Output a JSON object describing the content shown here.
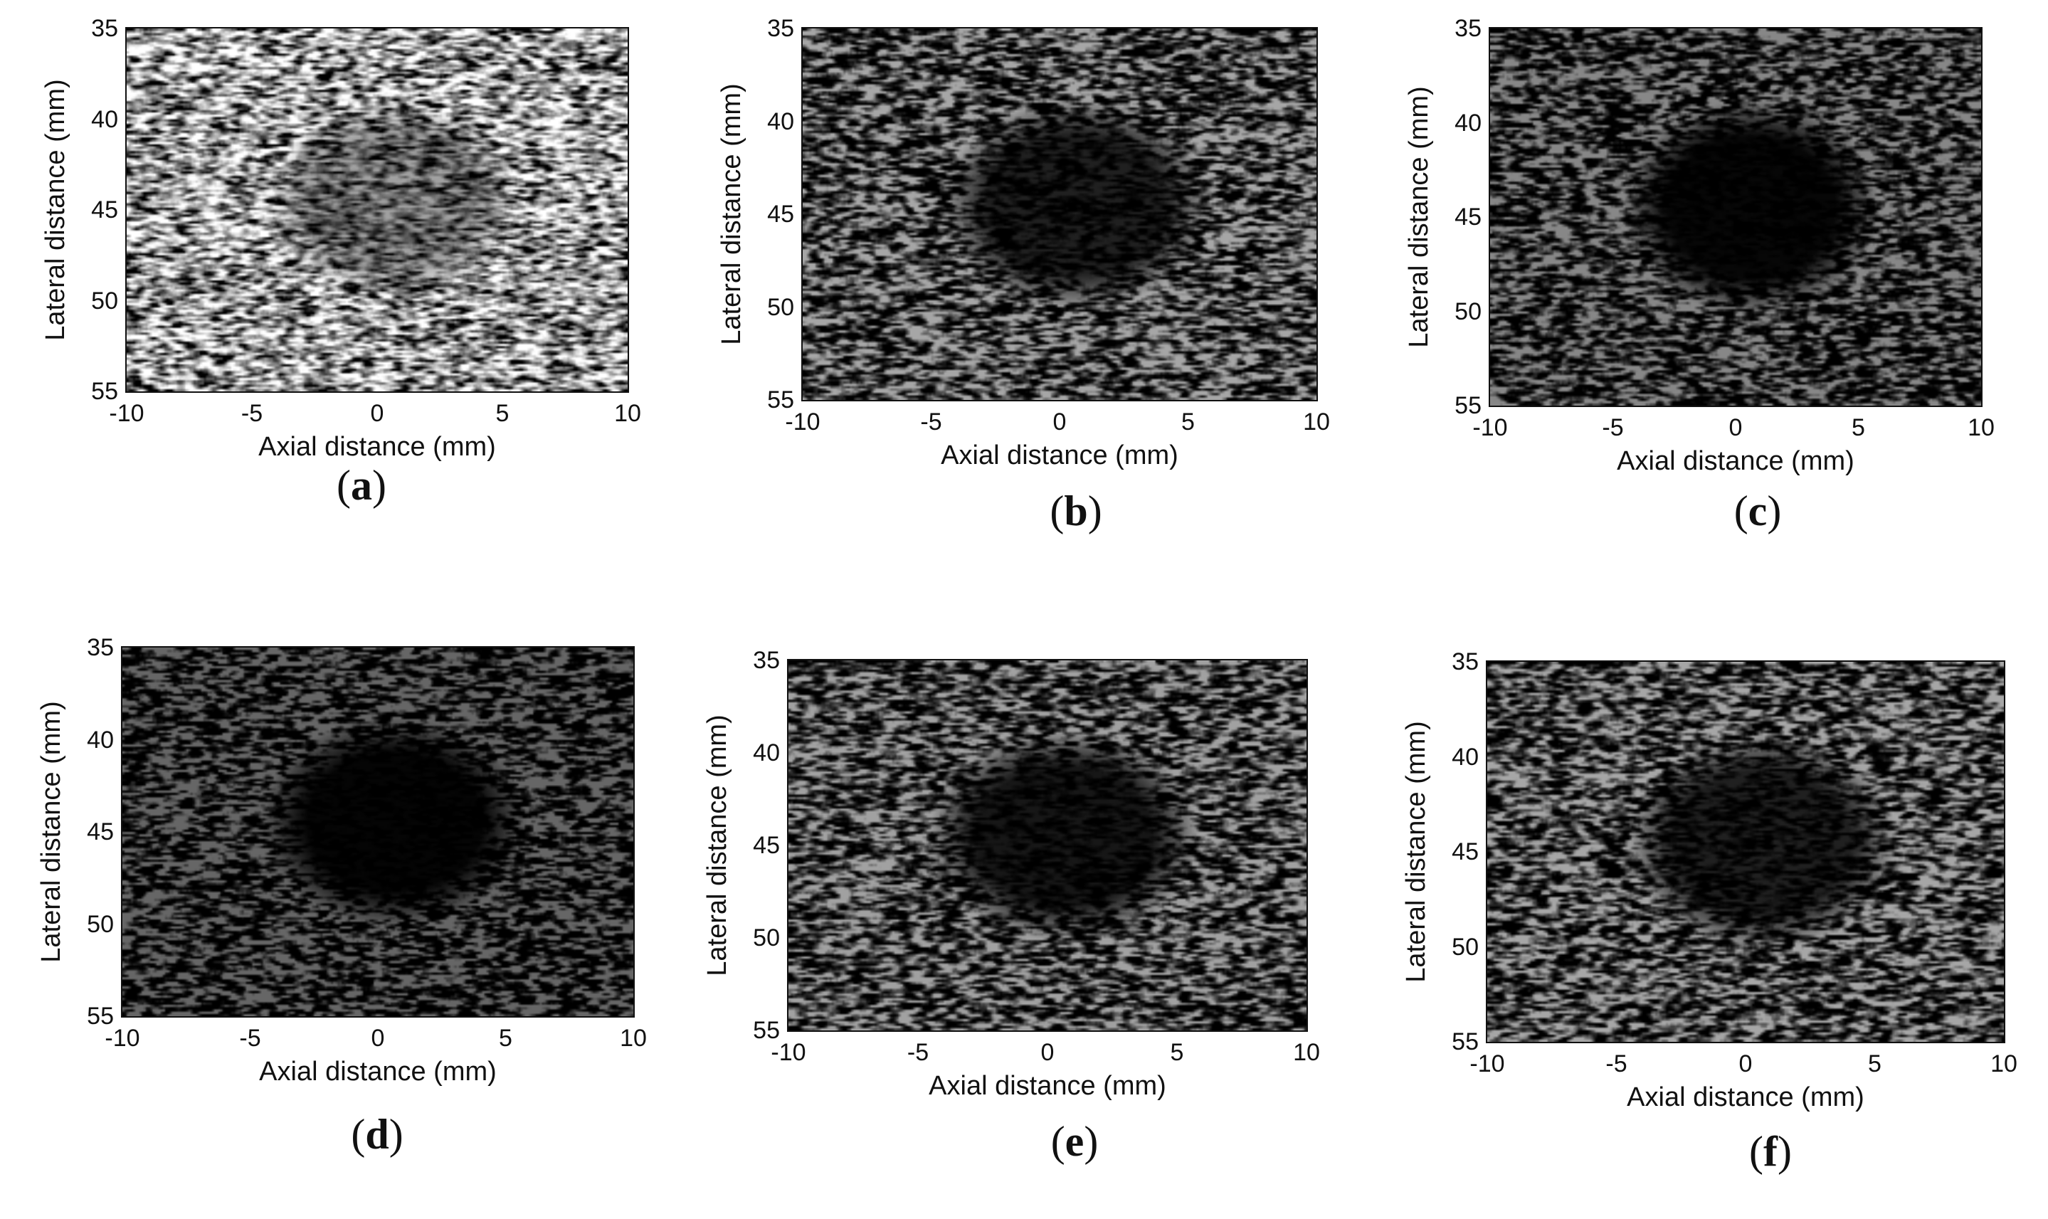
{
  "figure": {
    "panels": [
      {
        "id": "a",
        "caption_letter": "a",
        "xlabel": "Axial distance (mm)",
        "ylabel": "Lateral distance (mm)",
        "xticks": [
          "-10",
          "-5",
          "0",
          "5",
          "10"
        ],
        "yticks": [
          "35",
          "40",
          "45",
          "50",
          "55"
        ],
        "colormap": "gray",
        "brightness": 0.75,
        "contrast": 0.85,
        "cyst_depth": 0.45,
        "seed": 11
      },
      {
        "id": "b",
        "caption_letter": "b",
        "xlabel": "Axial distance (mm)",
        "ylabel": "Lateral distance (mm)",
        "xticks": [
          "-10",
          "-5",
          "0",
          "5",
          "10"
        ],
        "yticks": [
          "35",
          "40",
          "45",
          "50",
          "55"
        ],
        "colormap": "gray",
        "brightness": 0.3,
        "contrast": 1.3,
        "cyst_depth": 0.85,
        "seed": 23
      },
      {
        "id": "c",
        "caption_letter": "c",
        "xlabel": "Axial distance (mm)",
        "ylabel": "Lateral distance (mm)",
        "xticks": [
          "-10",
          "-5",
          "0",
          "5",
          "10"
        ],
        "yticks": [
          "35",
          "40",
          "45",
          "50",
          "55"
        ],
        "colormap": "gray",
        "brightness": 0.18,
        "contrast": 1.4,
        "cyst_depth": 1.0,
        "seed": 37
      },
      {
        "id": "d",
        "caption_letter": "d",
        "xlabel": "Axial distance (mm)",
        "ylabel": "Lateral distance (mm)",
        "xticks": [
          "-10",
          "-5",
          "0",
          "5",
          "10"
        ],
        "yticks": [
          "35",
          "40",
          "45",
          "50",
          "55"
        ],
        "colormap": "gray",
        "brightness": 0.05,
        "contrast": 1.9,
        "cyst_depth": 1.0,
        "seed": 41
      },
      {
        "id": "e",
        "caption_letter": "e",
        "xlabel": "Axial distance (mm)",
        "ylabel": "Lateral distance (mm)",
        "xticks": [
          "-10",
          "-5",
          "0",
          "5",
          "10"
        ],
        "yticks": [
          "35",
          "40",
          "45",
          "50",
          "55"
        ],
        "colormap": "gray",
        "brightness": 0.28,
        "contrast": 1.3,
        "cyst_depth": 0.9,
        "seed": 53
      },
      {
        "id": "f",
        "caption_letter": "f",
        "xlabel": "Axial distance (mm)",
        "ylabel": "Lateral distance (mm)",
        "xticks": [
          "-10",
          "-5",
          "0",
          "5",
          "10"
        ],
        "yticks": [
          "35",
          "40",
          "45",
          "50",
          "55"
        ],
        "colormap": "gray",
        "brightness": 0.3,
        "contrast": 1.3,
        "cyst_depth": 0.85,
        "seed": 67
      }
    ]
  },
  "chart_data": [
    {
      "type": "heatmap",
      "panel": "a",
      "xlabel": "Axial distance (mm)",
      "ylabel": "Lateral distance (mm)",
      "xlim": [
        -10,
        10
      ],
      "ylim": [
        35,
        55
      ],
      "y_inverted": true,
      "xticks": [
        -10,
        -5,
        0,
        5,
        10
      ],
      "yticks": [
        35,
        40,
        45,
        50,
        55
      ],
      "grid": false,
      "colormap": "gray",
      "anechoic_region_center": [
        1,
        45
      ]
    },
    {
      "type": "heatmap",
      "panel": "b",
      "xlabel": "Axial distance (mm)",
      "ylabel": "Lateral distance (mm)",
      "xlim": [
        -10,
        10
      ],
      "ylim": [
        35,
        55
      ],
      "y_inverted": true,
      "xticks": [
        -10,
        -5,
        0,
        5,
        10
      ],
      "yticks": [
        35,
        40,
        45,
        50,
        55
      ],
      "grid": false,
      "colormap": "gray",
      "anechoic_region_center": [
        1,
        45
      ]
    },
    {
      "type": "heatmap",
      "panel": "c",
      "xlabel": "Axial distance (mm)",
      "ylabel": "Lateral distance (mm)",
      "xlim": [
        -10,
        10
      ],
      "ylim": [
        35,
        55
      ],
      "y_inverted": true,
      "xticks": [
        -10,
        -5,
        0,
        5,
        10
      ],
      "yticks": [
        35,
        40,
        45,
        50,
        55
      ],
      "grid": false,
      "colormap": "gray",
      "anechoic_region_center": [
        0,
        45
      ]
    },
    {
      "type": "heatmap",
      "panel": "d",
      "xlabel": "Axial distance (mm)",
      "ylabel": "Lateral distance (mm)",
      "xlim": [
        -10,
        10
      ],
      "ylim": [
        35,
        55
      ],
      "y_inverted": true,
      "xticks": [
        -10,
        -5,
        0,
        5,
        10
      ],
      "yticks": [
        35,
        40,
        45,
        50,
        55
      ],
      "grid": false,
      "colormap": "gray",
      "anechoic_region_center": [
        0,
        46
      ]
    },
    {
      "type": "heatmap",
      "panel": "e",
      "xlabel": "Axial distance (mm)",
      "ylabel": "Lateral distance (mm)",
      "xlim": [
        -10,
        10
      ],
      "ylim": [
        35,
        55
      ],
      "y_inverted": true,
      "xticks": [
        -10,
        -5,
        0,
        5,
        10
      ],
      "yticks": [
        35,
        40,
        45,
        50,
        55
      ],
      "grid": false,
      "colormap": "gray",
      "anechoic_region_center": [
        0,
        45
      ]
    },
    {
      "type": "heatmap",
      "panel": "f",
      "xlabel": "Axial distance (mm)",
      "ylabel": "Lateral distance (mm)",
      "xlim": [
        -10,
        10
      ],
      "ylim": [
        35,
        55
      ],
      "y_inverted": true,
      "xticks": [
        -10,
        -5,
        0,
        5,
        10
      ],
      "yticks": [
        35,
        40,
        45,
        50,
        55
      ],
      "grid": false,
      "colormap": "gray",
      "anechoic_region_center": [
        1,
        45
      ]
    }
  ]
}
